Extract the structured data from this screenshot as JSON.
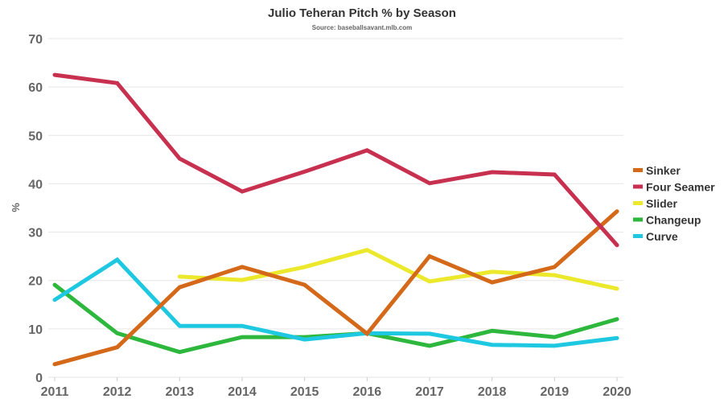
{
  "chart_data": {
    "type": "line",
    "title": "Julio Teheran Pitch % by Season",
    "subtitle": "Source: baseballsavant.mlb.com",
    "xlabel": "",
    "ylabel": "%",
    "x": [
      2011,
      2012,
      2013,
      2014,
      2015,
      2016,
      2017,
      2018,
      2019,
      2020
    ],
    "x_tick_labels": [
      "2011",
      "2012",
      "2013",
      "2014",
      "2015",
      "2016",
      "2017",
      "2018",
      "2019",
      "2020"
    ],
    "ylim": [
      0,
      70
    ],
    "y_ticks": [
      0,
      10,
      20,
      30,
      40,
      50,
      60,
      70
    ],
    "y_tick_labels": [
      "0",
      "10",
      "20",
      "30",
      "40",
      "50",
      "60",
      "70"
    ],
    "grid": true,
    "legend_position": "right",
    "series": [
      {
        "name": "Sinker",
        "color": "#d4691a",
        "values": [
          2.7,
          6.2,
          18.6,
          22.8,
          19.1,
          9.0,
          25.0,
          19.6,
          22.8,
          34.3
        ]
      },
      {
        "name": "Four Seamer",
        "color": "#c8304f",
        "values": [
          62.5,
          60.8,
          45.2,
          38.4,
          42.5,
          46.9,
          40.1,
          42.4,
          41.9,
          27.3
        ]
      },
      {
        "name": "Slider",
        "color": "#ece82c",
        "values": [
          null,
          null,
          20.8,
          20.1,
          22.8,
          26.3,
          19.8,
          21.8,
          21.1,
          18.3
        ]
      },
      {
        "name": "Changeup",
        "color": "#2db83d",
        "values": [
          19.1,
          9.1,
          5.2,
          8.3,
          8.3,
          9.1,
          6.5,
          9.6,
          8.3,
          12.0
        ]
      },
      {
        "name": "Curve",
        "color": "#1ec8e0",
        "values": [
          16.0,
          24.3,
          10.6,
          10.6,
          7.8,
          9.1,
          9.0,
          6.7,
          6.5,
          8.1
        ]
      }
    ]
  }
}
